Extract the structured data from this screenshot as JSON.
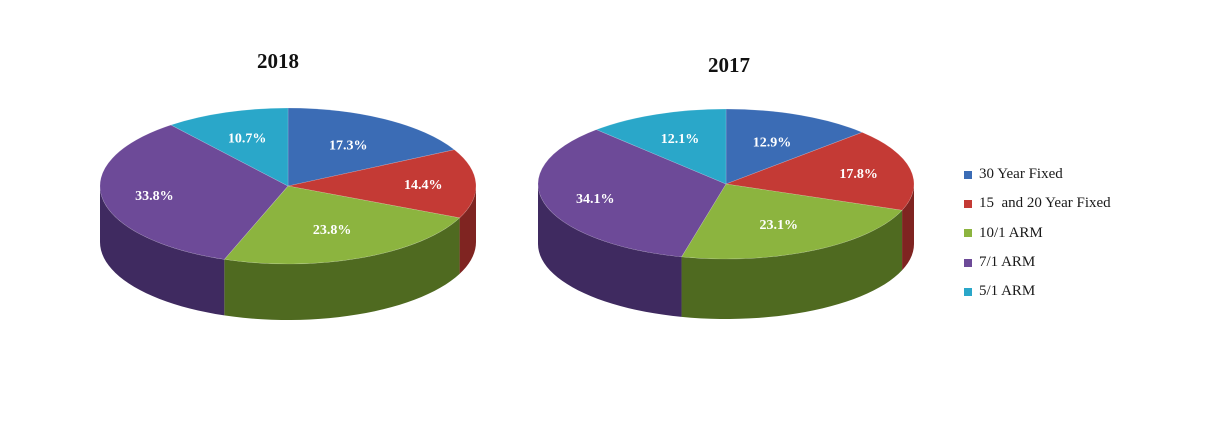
{
  "chart_data": [
    {
      "type": "pie",
      "title": "2018",
      "slices": [
        {
          "label": "30 Year Fixed",
          "value": 17.3,
          "value_label": "17.3%"
        },
        {
          "label": "15  and 20 Year Fixed",
          "value": 14.4,
          "value_label": "14.4%"
        },
        {
          "label": "10/1 ARM",
          "value": 23.8,
          "value_label": "23.8%"
        },
        {
          "label": "7/1 ARM",
          "value": 33.8,
          "value_label": "33.8%"
        },
        {
          "label": "5/1 ARM",
          "value": 10.7,
          "value_label": "10.7%"
        }
      ]
    },
    {
      "type": "pie",
      "title": "2017",
      "slices": [
        {
          "label": "30 Year Fixed",
          "value": 12.9,
          "value_label": "12.9%"
        },
        {
          "label": "15  and 20 Year Fixed",
          "value": 17.8,
          "value_label": "17.8%"
        },
        {
          "label": "10/1 ARM",
          "value": 23.1,
          "value_label": "23.1%"
        },
        {
          "label": "7/1 ARM",
          "value": 34.1,
          "value_label": "34.1%"
        },
        {
          "label": "5/1 ARM",
          "value": 12.1,
          "value_label": "12.1%"
        }
      ]
    }
  ],
  "legend": {
    "position": "right",
    "items": [
      {
        "label": "30 Year Fixed",
        "color": "#3b6cb5"
      },
      {
        "label": "15  and 20 Year Fixed",
        "color": "#c43a35"
      },
      {
        "label": "10/1 ARM",
        "color": "#8cb43f"
      },
      {
        "label": "7/1 ARM",
        "color": "#6d4a98"
      },
      {
        "label": "5/1 ARM",
        "color": "#2aa7c9"
      }
    ]
  },
  "colors": {
    "slice_top": [
      "#3b6cb5",
      "#c43a35",
      "#8cb43f",
      "#6d4a98",
      "#2aa7c9"
    ],
    "slice_side": [
      "#23477c",
      "#7f2421",
      "#4f6a20",
      "#3f2a60",
      "#176d87"
    ]
  }
}
